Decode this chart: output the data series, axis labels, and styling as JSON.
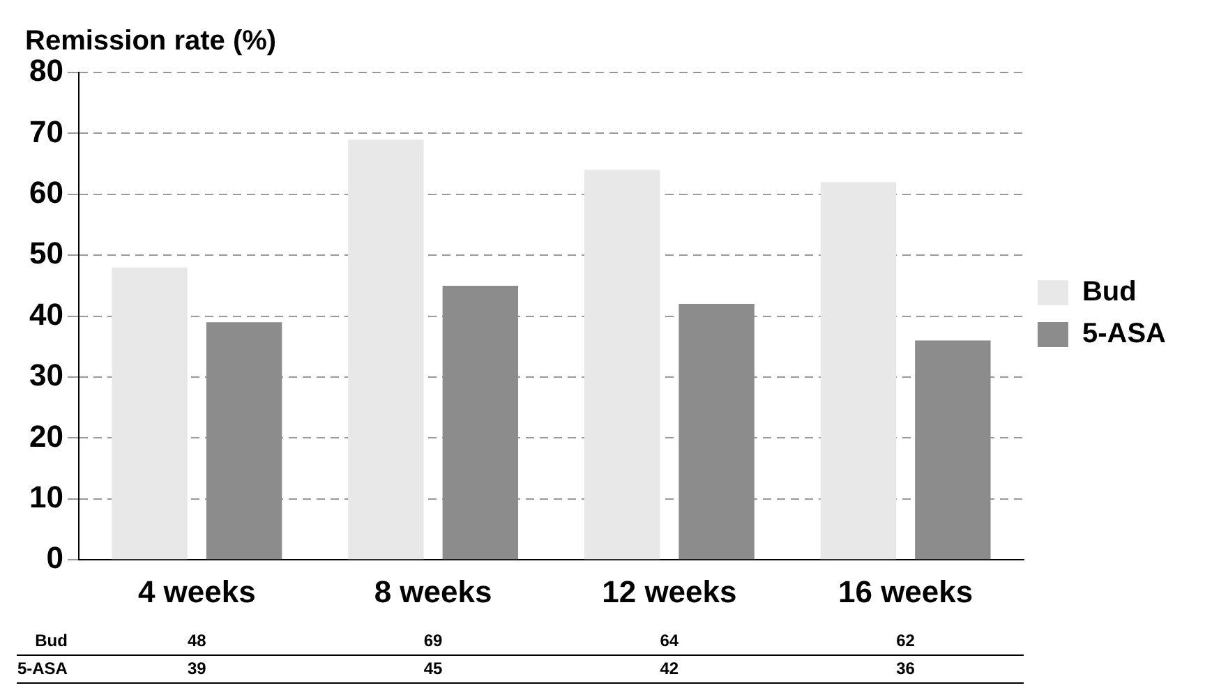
{
  "chart_data": {
    "type": "bar",
    "title": "Remission rate (%)",
    "categories": [
      "4 weeks",
      "8 weeks",
      "12 weeks",
      "16 weeks"
    ],
    "series": [
      {
        "name": "Bud",
        "color": "#e8e8e8",
        "values": [
          48,
          69,
          64,
          62
        ]
      },
      {
        "name": "5-ASA",
        "color": "#8c8c8c",
        "values": [
          39,
          45,
          42,
          36
        ]
      }
    ],
    "ylim": [
      0,
      80
    ],
    "yticks": [
      0,
      10,
      20,
      30,
      40,
      50,
      60,
      70,
      80
    ],
    "grid": "y",
    "legend": "right",
    "data_labels": true
  }
}
